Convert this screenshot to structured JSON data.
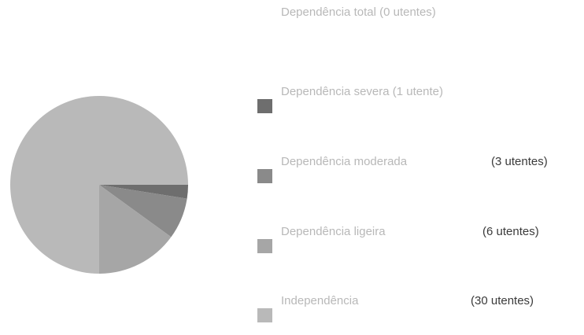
{
  "chart_data": {
    "type": "pie",
    "title": "",
    "legend_position": "right",
    "categories": [
      "Dependência total",
      "Dependência severa",
      "Dependência moderada",
      "Dependência ligeira",
      "Independência"
    ],
    "values": [
      0,
      1,
      3,
      6,
      30
    ],
    "legend_labels": [
      {
        "name": "Dependência total",
        "count": "(0 utentes)"
      },
      {
        "name": "Dependência severa",
        "count": "(1 utente)"
      },
      {
        "name": "Dependência moderada",
        "count": "(3 utentes)"
      },
      {
        "name": "Dependência ligeira",
        "count": "(6 utentes)"
      },
      {
        "name": "Independência",
        "count": "(30 utentes)"
      }
    ],
    "colors": [
      "#5a5a5a",
      "#6e6e6e",
      "#8a8a8a",
      "#a6a6a6",
      "#b9b9b9"
    ]
  }
}
